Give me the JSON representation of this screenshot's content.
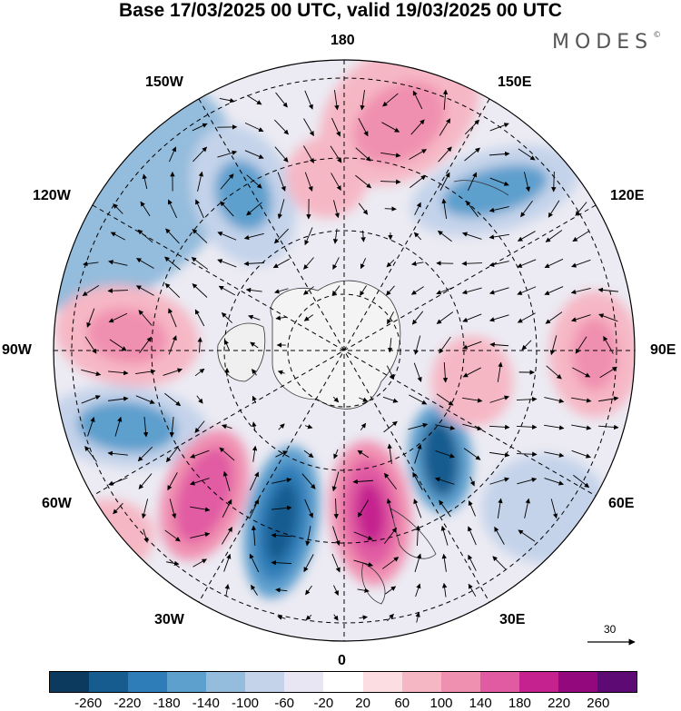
{
  "title": "Base 17/03/2025 00 UTC, valid 19/03/2025 00 UTC",
  "brand": {
    "name": "MODES",
    "mark": "©"
  },
  "longitude_labels": {
    "top": "180",
    "bottom": "0",
    "left": "90W",
    "right": "90E",
    "upper_left_1": "150W",
    "upper_left_2": "120W",
    "upper_right_1": "150E",
    "upper_right_2": "120E",
    "lower_left_1": "60W",
    "lower_left_2": "30W",
    "lower_right_1": "60E",
    "lower_right_2": "30E"
  },
  "reference_vector": {
    "value": "30"
  },
  "colorbar": {
    "colors": [
      "#0c3a5e",
      "#165c8f",
      "#2f7db8",
      "#5d9fcd",
      "#94bcdc",
      "#c4d3ea",
      "#e7e6f2",
      "#ffffff",
      "#fbdde2",
      "#f6b7c5",
      "#f090b0",
      "#e15ba3",
      "#c5228f",
      "#94087e",
      "#5e0a74"
    ],
    "tick_labels": [
      "-260",
      "-220",
      "-180",
      "-140",
      "-100",
      "-60",
      "-20",
      "20",
      "60",
      "100",
      "140",
      "180",
      "220",
      "260"
    ]
  }
}
